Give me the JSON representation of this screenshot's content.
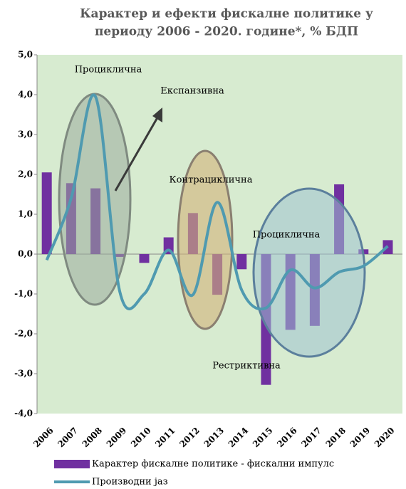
{
  "chart_data": {
    "type": "bar+line",
    "title": [
      "Карактер и ефекти фискалне политике у",
      "периоду 2006 - 2020. године*, % БДП"
    ],
    "categories": [
      "2006",
      "2007",
      "2008",
      "2009",
      "2010",
      "2011",
      "2012",
      "2013",
      "2014",
      "2015",
      "2016",
      "2017",
      "2018",
      "2019",
      "2020"
    ],
    "series": [
      {
        "name": "Карактер фискалне политике - фискални импулс",
        "type": "bar",
        "color": "#7030a0",
        "values": [
          2.05,
          1.78,
          1.65,
          -0.07,
          -0.22,
          0.42,
          1.03,
          -1.02,
          -0.38,
          -3.28,
          -1.9,
          -1.8,
          1.75,
          0.12,
          0.35
        ]
      },
      {
        "name": "Производни јаз",
        "type": "line",
        "color": "#4f9ab0",
        "values": [
          -0.15,
          1.4,
          3.95,
          -0.95,
          -1.0,
          0.1,
          -1.02,
          1.3,
          -0.9,
          -1.35,
          -0.4,
          -0.85,
          -0.45,
          -0.3,
          0.2
        ]
      }
    ],
    "ylim": [
      -4,
      5
    ],
    "yticks": [
      {
        "value": -4,
        "label": "-4,0"
      },
      {
        "value": -3,
        "label": "-3,0"
      },
      {
        "value": -2,
        "label": "-2,0"
      },
      {
        "value": -1,
        "label": "-1,0"
      },
      {
        "value": 0,
        "label": "0,0"
      },
      {
        "value": 1,
        "label": "1,0"
      },
      {
        "value": 2,
        "label": "2,0"
      },
      {
        "value": 3,
        "label": "3,0"
      },
      {
        "value": 4,
        "label": "4,0"
      },
      {
        "value": 5,
        "label": "5,0"
      }
    ],
    "annotations": [
      "Проциклична",
      "Експанзивна",
      "Контрациклична",
      "Проциклична",
      "Рестриктивна"
    ],
    "legend": "bottom"
  }
}
